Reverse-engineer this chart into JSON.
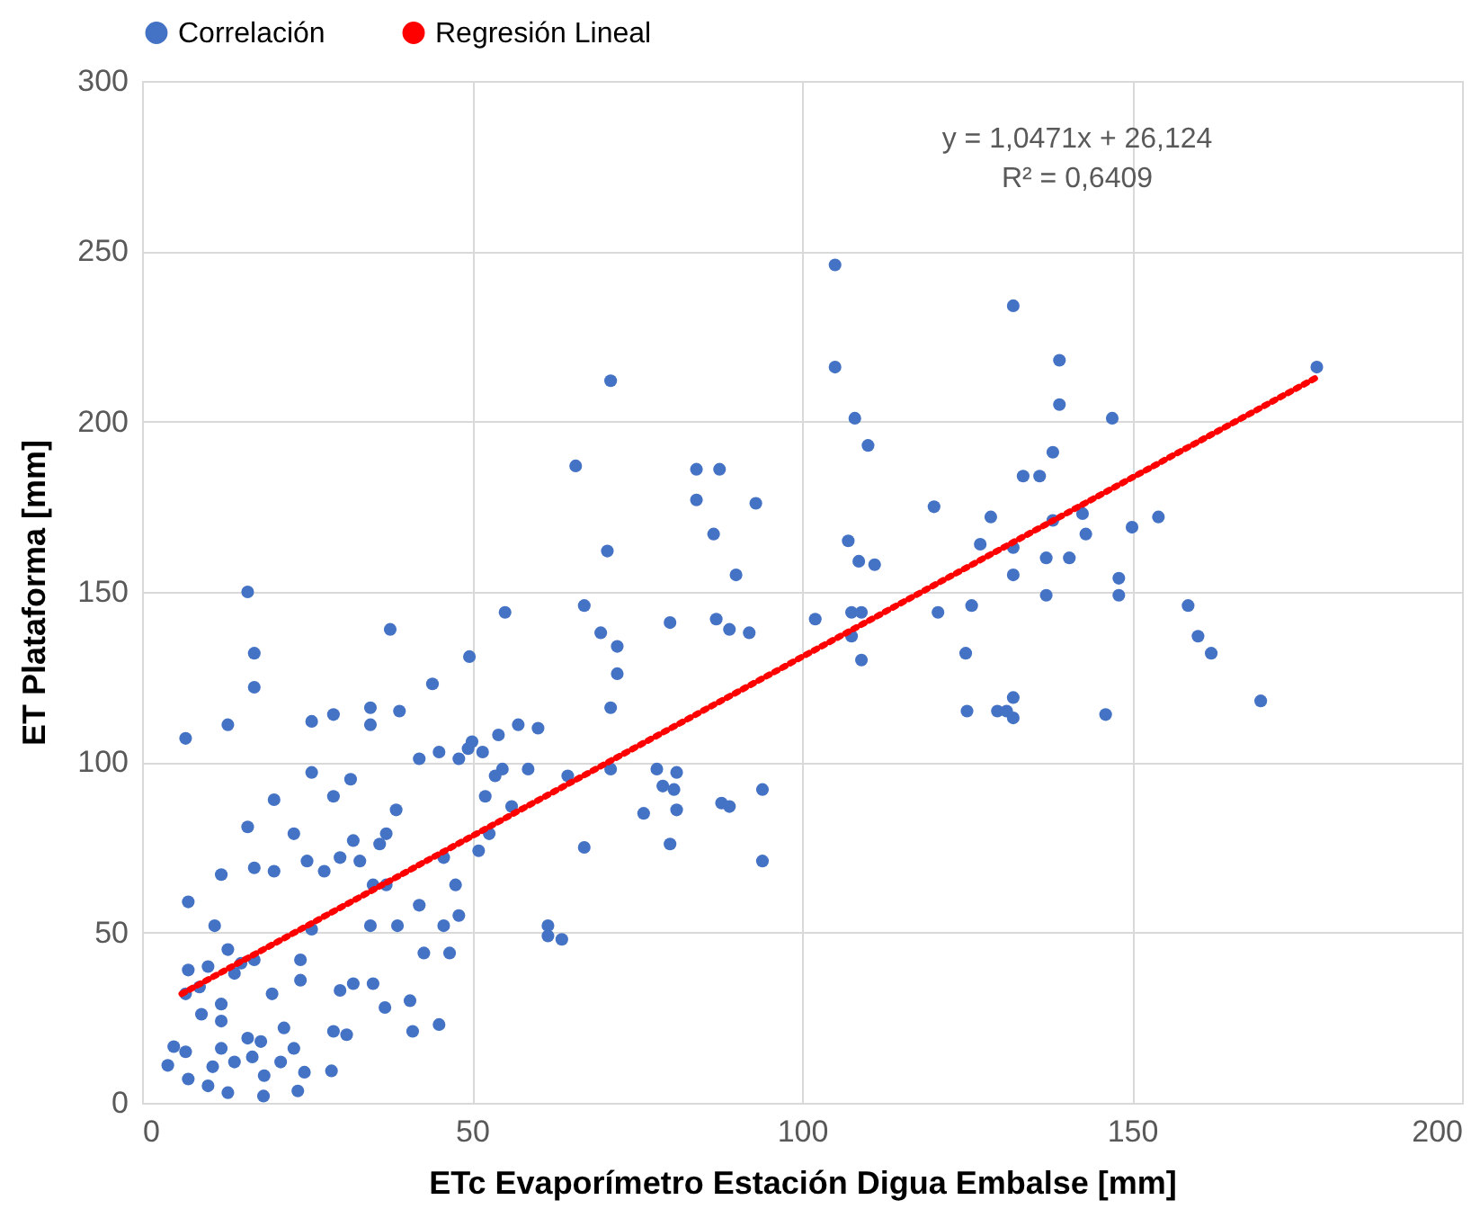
{
  "chart_data": {
    "type": "scatter",
    "xlabel": "ETc Evaporímetro Estación Digua Embalse [mm]",
    "ylabel": "ET Plataforma [mm]",
    "xlim": [
      0,
      200
    ],
    "xticks": [
      0,
      50,
      100,
      150,
      200
    ],
    "ylim": [
      0,
      300
    ],
    "yticks": [
      0,
      50,
      100,
      150,
      200,
      250,
      300
    ],
    "grid": true,
    "legend": "top",
    "annotations": [
      "y = 1,0471x + 26,124",
      "R² = 0,6409"
    ],
    "series": [
      {
        "name": "Correlación",
        "color": "#4472c4",
        "marker": "circle",
        "x": [
          105,
          132,
          71,
          105,
          178,
          139,
          108,
          110,
          139,
          147,
          65.7,
          84,
          87.5,
          133.5,
          136,
          138,
          84,
          93,
          86.6,
          120,
          128.6,
          138,
          142.5,
          154,
          143,
          132,
          150,
          107,
          108.6,
          111,
          70.5,
          127,
          137,
          140.5,
          148,
          132,
          90,
          137,
          120.6,
          107.5,
          102,
          109,
          80,
          87,
          89,
          92,
          67,
          55,
          125.7,
          148,
          158.5,
          160,
          162,
          169.5,
          146,
          107.5,
          109,
          69.5,
          72,
          72,
          71,
          124.8,
          125,
          129.6,
          131,
          132,
          132,
          37.6,
          16,
          17,
          17,
          13,
          6.6,
          49.6,
          57,
          60,
          44,
          34.6,
          39,
          29,
          25.7,
          29,
          34.6,
          42,
          45,
          48,
          49.4,
          50,
          54,
          58.5,
          64.5,
          71,
          78,
          78.9,
          81,
          80.6,
          76,
          81,
          80,
          67,
          51.6,
          54.6,
          56,
          52,
          53.5,
          31.6,
          25.7,
          20,
          16,
          12,
          11,
          7,
          17,
          20,
          25,
          27.6,
          30,
          23,
          32,
          38.5,
          36,
          33,
          37,
          37,
          45.7,
          47.5,
          51,
          52.6,
          42,
          45.7,
          48,
          25.7,
          34.6,
          35,
          38.7,
          61.5,
          61.5,
          63.6,
          87.8,
          89,
          94,
          94,
          42.7,
          24,
          24,
          40.6,
          32,
          35,
          36.8,
          30,
          41,
          29,
          17,
          8.7,
          7,
          6.6,
          14,
          13,
          15,
          12,
          9,
          12,
          16,
          12,
          18,
          21.5,
          23,
          21,
          16.7,
          14,
          18.5,
          24.6,
          10.7,
          6.6,
          7,
          10,
          13,
          18.4,
          23.6,
          28.7,
          4.8,
          3.9,
          10,
          19.7,
          31,
          45,
          46.6
        ],
        "values": [
          246,
          234,
          212,
          216,
          216,
          218,
          201,
          193,
          205,
          201,
          187,
          186,
          186,
          184,
          184,
          191,
          177,
          176,
          167,
          175,
          172,
          171,
          173,
          172,
          167,
          163,
          169,
          165,
          159,
          158,
          162,
          164,
          160,
          160,
          154,
          155,
          155,
          149,
          144,
          144,
          142,
          144,
          141,
          142,
          139,
          138,
          146,
          144,
          146,
          149,
          146,
          137,
          132,
          118,
          114,
          137,
          130,
          138,
          134,
          126,
          116,
          132,
          115,
          115,
          115,
          119,
          113,
          139,
          150,
          132,
          122,
          111,
          107,
          131,
          111,
          110,
          123,
          116,
          115,
          114,
          112,
          90,
          111,
          101,
          103,
          101,
          104,
          106,
          108,
          98,
          96,
          98,
          98,
          93,
          97,
          92,
          85,
          86,
          76,
          75,
          103,
          98,
          87,
          90,
          96,
          95,
          97,
          89,
          81,
          67,
          52,
          59,
          69,
          68,
          71,
          68,
          72,
          79,
          77,
          86,
          76,
          71,
          79,
          64,
          72,
          64,
          74,
          79,
          58,
          52,
          55,
          51,
          52,
          64,
          52,
          52,
          49,
          48,
          88,
          87,
          92,
          71,
          44,
          42,
          36,
          30,
          35,
          35,
          28,
          33,
          21,
          21,
          42,
          34,
          39,
          32,
          38,
          45,
          41,
          29,
          26,
          24,
          19,
          16,
          18,
          22,
          16,
          12,
          13.5,
          12,
          8,
          9,
          10.6,
          15,
          7,
          5,
          3,
          2,
          3.5,
          9.4,
          16.5,
          11,
          40,
          32,
          20,
          23,
          44
        ]
      },
      {
        "name": "Regresión Lineal",
        "color": "#ff0000",
        "type": "line",
        "line_style": "dotted",
        "x": [
          6,
          178
        ],
        "values": [
          32,
          213
        ]
      }
    ]
  }
}
